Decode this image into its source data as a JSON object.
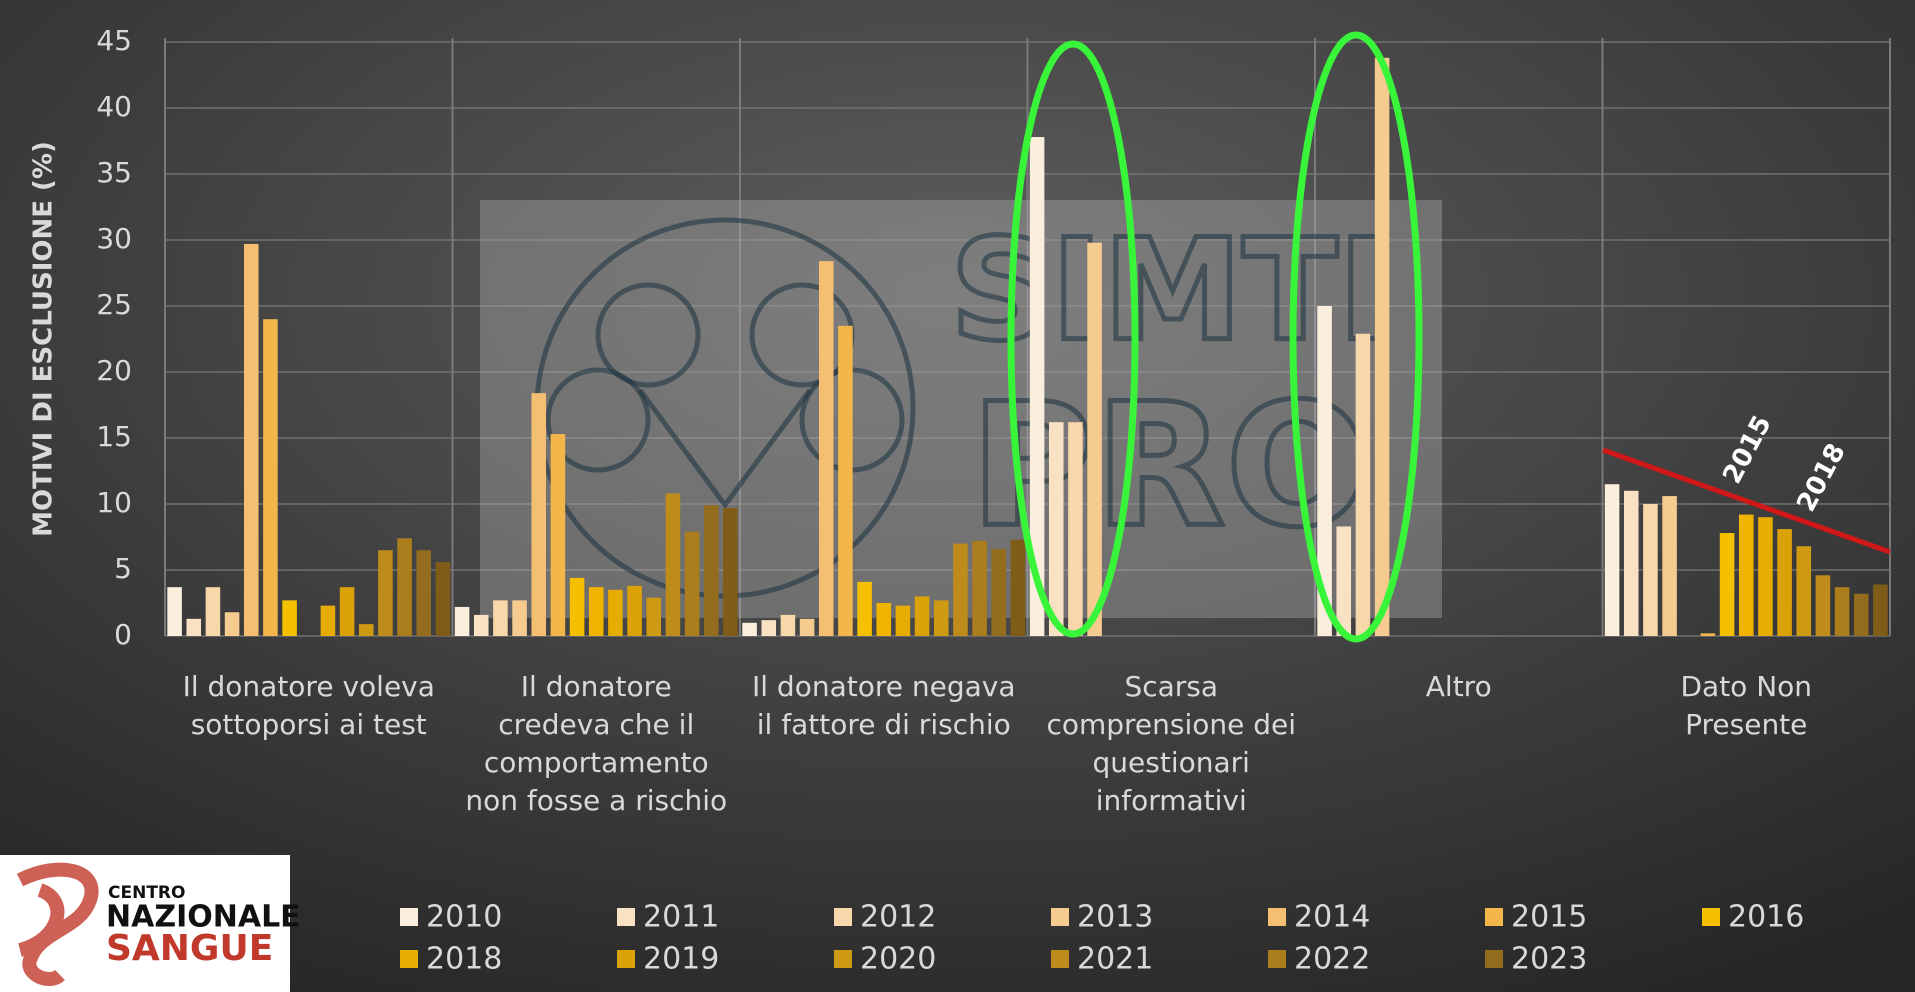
{
  "chart_data": {
    "type": "bar",
    "y_axis_label": "MOTIVI DI ESCLUSIONE (%)",
    "categories": [
      "Il donatore voleva\nsottoporsi ai test",
      "Il donatore\ncredeva che il\ncomportamento\nnon fosse a rischio",
      "Il donatore negava\nil fattore di rischio",
      "Scarsa\ncomprensione dei\nquestionari\ninformativi",
      "Altro",
      "Dato Non\nPresente"
    ],
    "series": [
      {
        "name": "2010",
        "color": "#fbeedd",
        "values": [
          3.7,
          2.2,
          1.0,
          37.8,
          25.0,
          11.5
        ]
      },
      {
        "name": "2011",
        "color": "#f9e2c4",
        "values": [
          1.3,
          1.6,
          1.2,
          16.2,
          8.3,
          11.0
        ]
      },
      {
        "name": "2012",
        "color": "#f8d7ab",
        "values": [
          3.7,
          2.7,
          1.6,
          16.2,
          22.9,
          10.0
        ]
      },
      {
        "name": "2013",
        "color": "#f6cb8f",
        "values": [
          1.8,
          2.7,
          1.3,
          29.8,
          43.8,
          10.6
        ]
      },
      {
        "name": "2014",
        "color": "#f4bf70",
        "values": [
          29.7,
          18.4,
          28.4,
          null,
          null,
          null
        ]
      },
      {
        "name": "2015",
        "color": "#f3b64a",
        "values": [
          24.0,
          15.3,
          23.5,
          null,
          null,
          0.2
        ]
      },
      {
        "name": "2016",
        "color": "#f5c000",
        "values": [
          2.7,
          4.4,
          4.1,
          null,
          null,
          7.8
        ]
      },
      {
        "color": "#f0b400",
        "values": [
          null,
          3.7,
          2.5,
          null,
          null,
          9.2
        ]
      },
      {
        "name": "2018",
        "color": "#e7ac00",
        "values": [
          2.3,
          3.5,
          2.3,
          null,
          null,
          9.0
        ]
      },
      {
        "name": "2019",
        "color": "#dba208",
        "values": [
          3.7,
          3.8,
          3.0,
          null,
          null,
          8.1
        ]
      },
      {
        "name": "2020",
        "color": "#cd9a12",
        "values": [
          0.9,
          2.9,
          2.7,
          null,
          null,
          6.8
        ]
      },
      {
        "name": "2021",
        "color": "#bd8c1a",
        "values": [
          6.5,
          10.8,
          7.0,
          null,
          null,
          4.6
        ]
      },
      {
        "name": "2022",
        "color": "#ab7d1c",
        "values": [
          7.4,
          7.9,
          7.2,
          null,
          null,
          3.7
        ]
      },
      {
        "name": "2023",
        "color": "#946c1d",
        "values": [
          6.5,
          9.9,
          6.6,
          null,
          null,
          3.2
        ]
      },
      {
        "color": "#7f5d19",
        "values": [
          5.6,
          9.7,
          7.3,
          null,
          null,
          3.9
        ]
      }
    ],
    "ylim": [
      0,
      45
    ],
    "yticks": [
      0,
      5,
      10,
      15,
      20,
      25,
      30,
      35,
      40,
      45
    ],
    "grid": true,
    "annotations": [
      "2015",
      "2018"
    ]
  },
  "watermark": [
    "SIMTI",
    "PRO"
  ],
  "logo": [
    "CENTRO",
    "NAZIONALE",
    "SANGUE"
  ]
}
